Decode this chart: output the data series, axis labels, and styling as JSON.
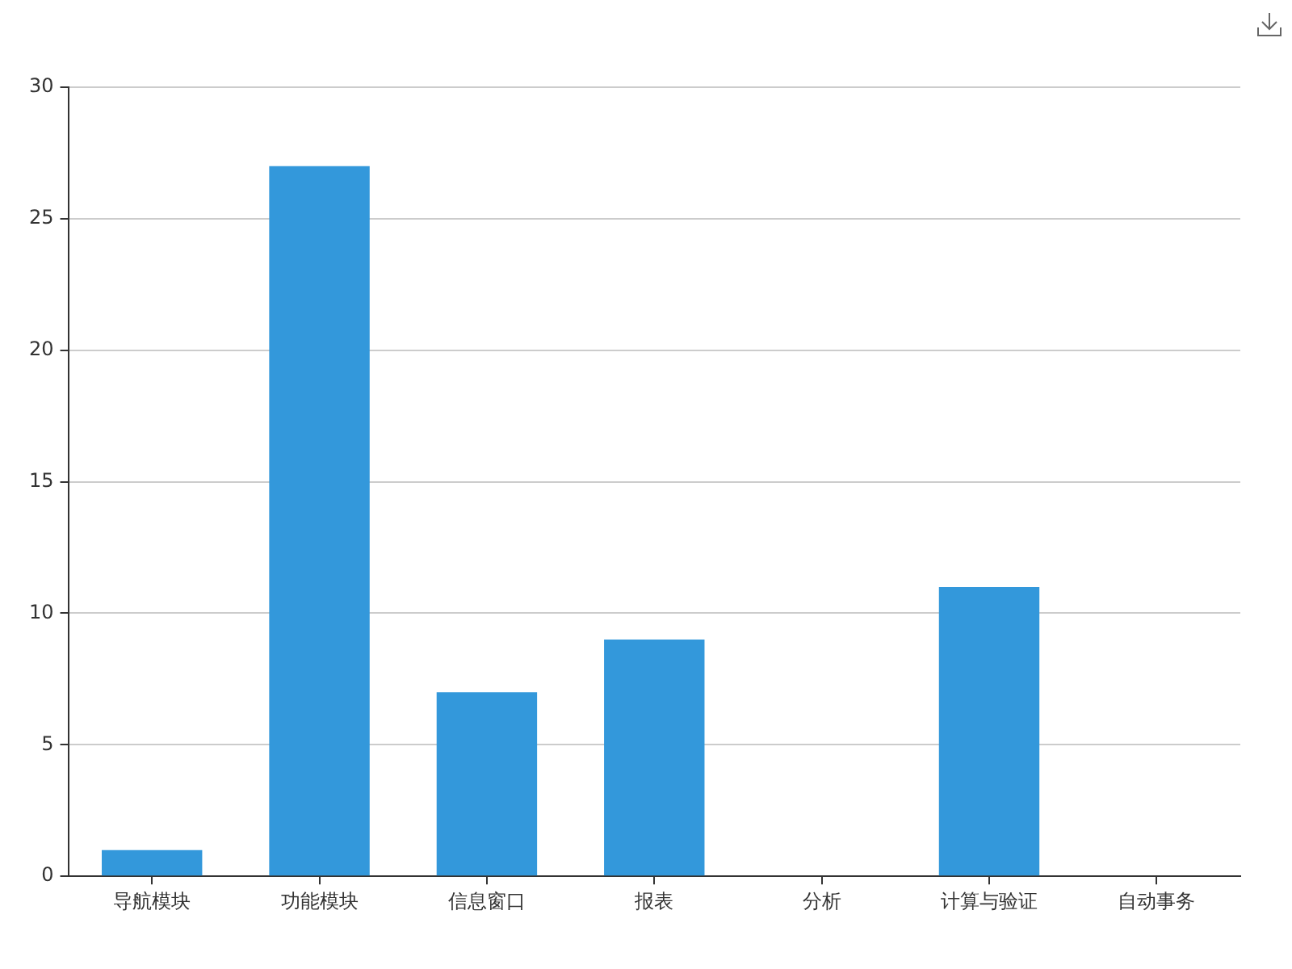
{
  "chart_data": {
    "type": "bar",
    "categories": [
      "导航模块",
      "功能模块",
      "信息窗口",
      "报表",
      "分析",
      "计算与验证",
      "自动事务"
    ],
    "values": [
      1,
      27,
      7,
      9,
      0,
      11,
      0
    ],
    "color": "#3398db",
    "ylim": [
      0,
      30
    ],
    "yticks": [
      0,
      5,
      10,
      15,
      20,
      25,
      30
    ],
    "grid": "y"
  }
}
